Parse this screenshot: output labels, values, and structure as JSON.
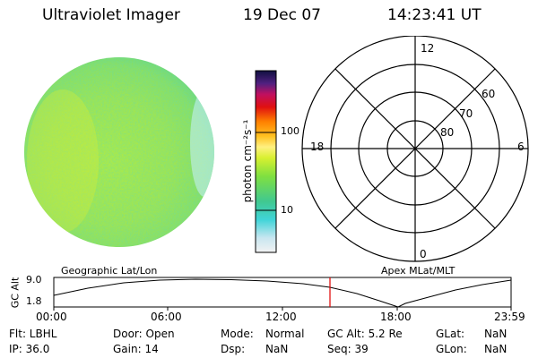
{
  "header": {
    "title": "Ultraviolet Imager",
    "date": "19 Dec 07",
    "time": "14:23:41 UT"
  },
  "colorbar": {
    "unit": "photon cm⁻²s⁻¹",
    "tick_labels": [
      "100",
      "10"
    ]
  },
  "polar": {
    "mlt_labels": {
      "top": "12",
      "bottom": "0",
      "left": "18",
      "right": "6"
    },
    "mlat_labels": [
      "60",
      "70",
      "80"
    ]
  },
  "timeline": {
    "left_label": "Geographic Lat/Lon",
    "right_label": "Apex MLat/MLT",
    "y_axis_label": "GC Alt",
    "y_ticks": [
      "9.0",
      "1.8"
    ],
    "x_ticks": [
      "00:00",
      "06:00",
      "12:00",
      "18:00",
      "23:59"
    ]
  },
  "info": {
    "flt": "Flt: LBHL",
    "ip": "IP: 36.0",
    "door": "Door: Open",
    "gain": "Gain: 14",
    "mode_label": "Mode:",
    "mode_value": "Normal",
    "dsp_label": "Dsp:",
    "dsp_value": "NaN",
    "gcalt": "GC Alt: 5.2 Re",
    "seq": "Seq: 39",
    "glat_label": "GLat:",
    "glat_value": "NaN",
    "glon_label": "GLon:",
    "glon_value": "NaN"
  },
  "colors": {
    "marker": "#e00000",
    "grid": "#000000",
    "disk_base": "#9ee64a"
  }
}
